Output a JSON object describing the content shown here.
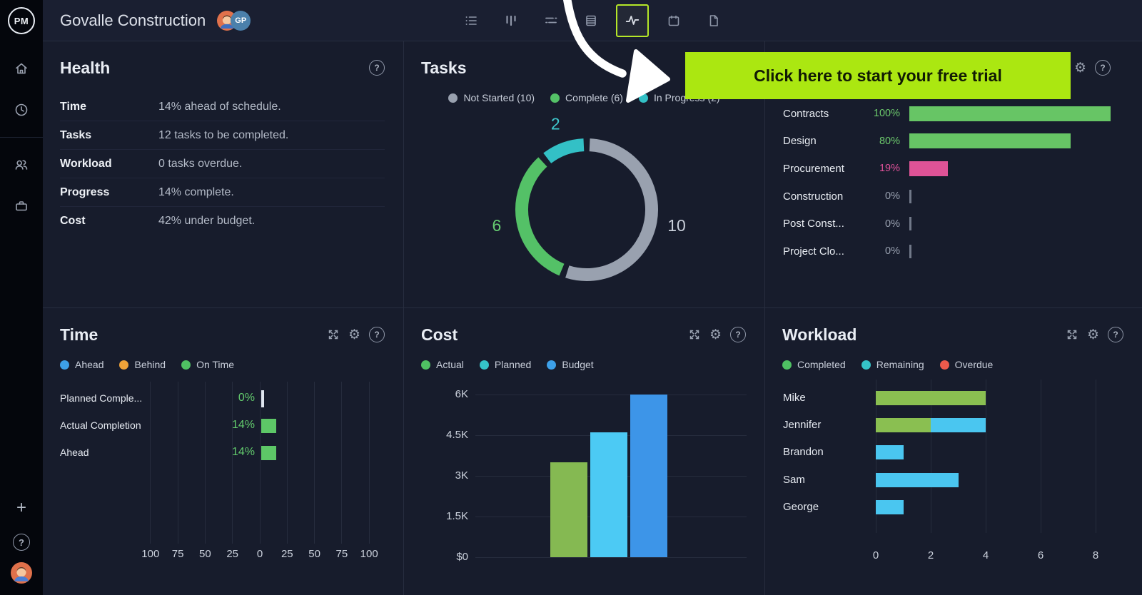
{
  "topbar": {
    "title": "Govalle Construction",
    "avatar_initials": "GP",
    "views": [
      "list",
      "board",
      "filter",
      "sheet",
      "activity",
      "calendar",
      "report"
    ],
    "active_view": "activity"
  },
  "sidebar": {
    "logo": "PM",
    "plus": "+"
  },
  "icons": {
    "help": "?",
    "gear": "⚙"
  },
  "banner": {
    "label": "Click here to start your free trial",
    "bg": "#abe711",
    "text_color": "#111a04"
  },
  "panels": {
    "health": {
      "title": "Health",
      "rows": [
        {
          "label": "Time",
          "value": "14% ahead of schedule."
        },
        {
          "label": "Tasks",
          "value": "12 tasks to be completed."
        },
        {
          "label": "Workload",
          "value": "0 tasks overdue."
        },
        {
          "label": "Progress",
          "value": "14% complete."
        },
        {
          "label": "Cost",
          "value": "42% under budget."
        }
      ]
    },
    "tasks": {
      "title": "Tasks"
    },
    "time": {
      "title": "Time"
    },
    "cost": {
      "title": "Cost"
    },
    "workload": {
      "title": "Workload"
    }
  },
  "chart_data": [
    {
      "id": "tasks-donut",
      "type": "pie",
      "title": "Tasks",
      "labels": [
        "Not Started",
        "Complete",
        "In Progress"
      ],
      "values": [
        10,
        6,
        2
      ],
      "colors": [
        "#99a1af",
        "#54c167",
        "#33c0c6"
      ],
      "label_colors": [
        "#c9cfda",
        "#66cc71",
        "#3fc9ce"
      ],
      "legend": [
        {
          "label": "Not Started (10)",
          "color": "#99a1af"
        },
        {
          "label": "Complete (6)",
          "color": "#54c167"
        },
        {
          "label": "In Progress (2)",
          "color": "#33c0c6"
        }
      ]
    },
    {
      "id": "phase-progress",
      "type": "bar",
      "xlim": [
        0,
        100
      ],
      "categories": [
        "Contracts",
        "Design",
        "Procurement",
        "Construction",
        "Post Const...",
        "Project Clo..."
      ],
      "values": [
        100,
        80,
        19,
        0,
        0,
        0
      ],
      "value_labels": [
        "100%",
        "80%",
        "19%",
        "0%",
        "0%",
        "0%"
      ],
      "colors": [
        "#67c565",
        "#67c565",
        "#df5397",
        "#99a1b0",
        "#99a1b0",
        "#99a1b0"
      ],
      "pct_colors": [
        "#6cc96c",
        "#6cc96c",
        "#e0529a",
        "#99a1b0",
        "#99a1b0",
        "#99a1b0"
      ]
    },
    {
      "id": "time-progress",
      "type": "bar",
      "orientation": "horizontal",
      "categories": [
        "Planned Comple...",
        "Actual Completion",
        "Ahead"
      ],
      "values": [
        0,
        14,
        14
      ],
      "value_labels": [
        "0%",
        "14%",
        "14%"
      ],
      "bar_color": "#5dc767",
      "value_color": "#63cb6d",
      "axis_tick_values": [
        -100,
        -75,
        -50,
        -25,
        0,
        25,
        50,
        75,
        100
      ],
      "axis_tick_labels": [
        "100",
        "75",
        "50",
        "25",
        "0",
        "25",
        "50",
        "75",
        "100"
      ],
      "legend": [
        {
          "label": "Ahead",
          "color": "#3da0e8"
        },
        {
          "label": "Behind",
          "color": "#f0a339"
        },
        {
          "label": "On Time",
          "color": "#4fc163"
        }
      ]
    },
    {
      "id": "cost",
      "type": "bar",
      "categories": [
        "Actual",
        "Planned",
        "Budget"
      ],
      "values": [
        3500,
        4600,
        6000
      ],
      "colors": [
        "#85b952",
        "#4ccaf4",
        "#3d95e8"
      ],
      "ytick_values": [
        6000,
        4500,
        3000,
        1500,
        0
      ],
      "ytick_labels": [
        "6K",
        "4.5K",
        "3K",
        "1.5K",
        "$0"
      ],
      "legend": [
        {
          "label": "Actual",
          "color": "#4fc163"
        },
        {
          "label": "Planned",
          "color": "#35c4c8"
        },
        {
          "label": "Budget",
          "color": "#3da0e8"
        }
      ]
    },
    {
      "id": "workload",
      "type": "bar",
      "stacked": true,
      "categories": [
        "Mike",
        "Jennifer",
        "Brandon",
        "Sam",
        "George"
      ],
      "series": [
        {
          "name": "Completed",
          "color": "#8abf51",
          "values": [
            4,
            2,
            0,
            0,
            0
          ]
        },
        {
          "name": "Remaining",
          "color": "#4ac6f0",
          "values": [
            0,
            2,
            1,
            3,
            1
          ]
        },
        {
          "name": "Overdue",
          "color": "#ef5a4c",
          "values": [
            0,
            0,
            0,
            0,
            0
          ]
        }
      ],
      "xtick_values": [
        0,
        2,
        4,
        6,
        8
      ],
      "xtick_labels": [
        "0",
        "2",
        "4",
        "6",
        "8"
      ],
      "legend": [
        {
          "label": "Completed",
          "color": "#4fc163"
        },
        {
          "label": "Remaining",
          "color": "#35c4c8"
        },
        {
          "label": "Overdue",
          "color": "#ef5a4c"
        }
      ]
    }
  ]
}
